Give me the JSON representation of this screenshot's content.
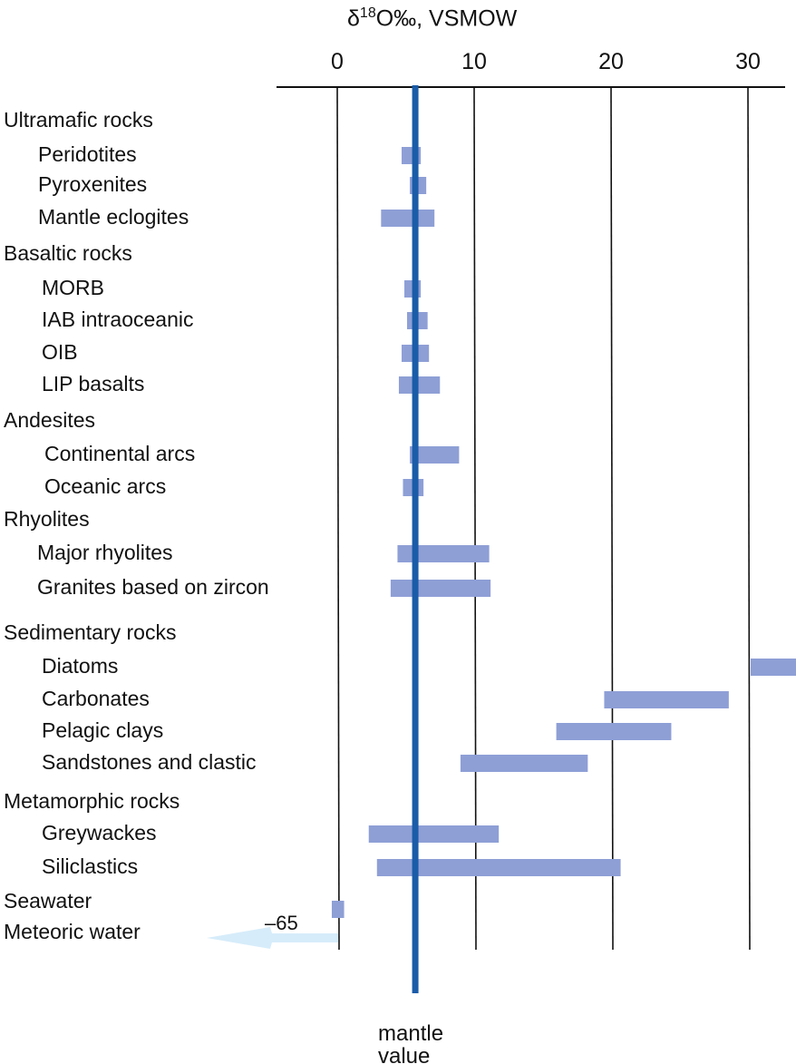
{
  "chart_data": {
    "type": "range-bar",
    "title": "δ18O‰, VSMOW",
    "title_parts": {
      "delta": "δ",
      "sup": "18",
      "rest": "O‰, VSMOW"
    },
    "xlim": [
      -4.5,
      33.5
    ],
    "xticks": [
      0,
      10,
      20,
      30
    ],
    "xtick_labels": [
      "0",
      "10",
      "20",
      "30"
    ],
    "grid": "vertical at ticks",
    "bar_color": "#8e9fd6",
    "mantle_color": "#1a5ca8",
    "mantle_value": 5.7,
    "mantle_label": [
      "mantle",
      "value"
    ],
    "groups": [
      {
        "name": "Ultramafic rocks",
        "items": [
          {
            "name": "Peridotites",
            "range": [
              4.7,
              6.1
            ]
          },
          {
            "name": "Pyroxenites",
            "range": [
              5.3,
              6.5
            ]
          },
          {
            "name": "Mantle eclogites",
            "range": [
              3.2,
              7.1
            ]
          }
        ]
      },
      {
        "name": "Basaltic rocks",
        "items": [
          {
            "name": "MORB",
            "range": [
              4.9,
              6.1
            ]
          },
          {
            "name": "IAB intraoceanic",
            "range": [
              5.1,
              6.6
            ]
          },
          {
            "name": "OIB",
            "range": [
              4.7,
              6.7
            ]
          },
          {
            "name": "LIP basalts",
            "range": [
              4.5,
              7.5
            ]
          }
        ]
      },
      {
        "name": "Andesites",
        "items": [
          {
            "name": "Continental arcs",
            "range": [
              5.3,
              8.9
            ]
          },
          {
            "name": "Oceanic arcs",
            "range": [
              4.8,
              6.3
            ]
          }
        ]
      },
      {
        "name": "Rhyolites",
        "items": [
          {
            "name": "Major rhyolites",
            "range": [
              4.4,
              11.1
            ]
          },
          {
            "name": "Granites based on zircon",
            "range": [
              3.9,
              11.2
            ]
          }
        ]
      },
      {
        "name": "Sedimentary rocks",
        "items": [
          {
            "name": "Diatoms",
            "range": [
              30.2,
              33.6
            ]
          },
          {
            "name": "Carbonates",
            "range": [
              19.5,
              28.6
            ]
          },
          {
            "name": "Pelagic clays",
            "range": [
              16.0,
              24.4
            ]
          },
          {
            "name": "Sandstones and clastic",
            "range": [
              9.0,
              18.3
            ]
          }
        ]
      },
      {
        "name": "Metamorphic rocks",
        "items": [
          {
            "name": "Greywackes",
            "range": [
              2.3,
              11.8
            ]
          },
          {
            "name": "Siliclastics",
            "range": [
              2.9,
              20.7
            ]
          }
        ]
      }
    ],
    "waters": [
      {
        "name": "Seawater",
        "range": [
          -0.4,
          0.5
        ]
      },
      {
        "name": "Meteoric water",
        "range": [
          -65,
          0
        ],
        "arrow_label": "–65",
        "arrow_color": "#d6ecfa"
      }
    ]
  }
}
